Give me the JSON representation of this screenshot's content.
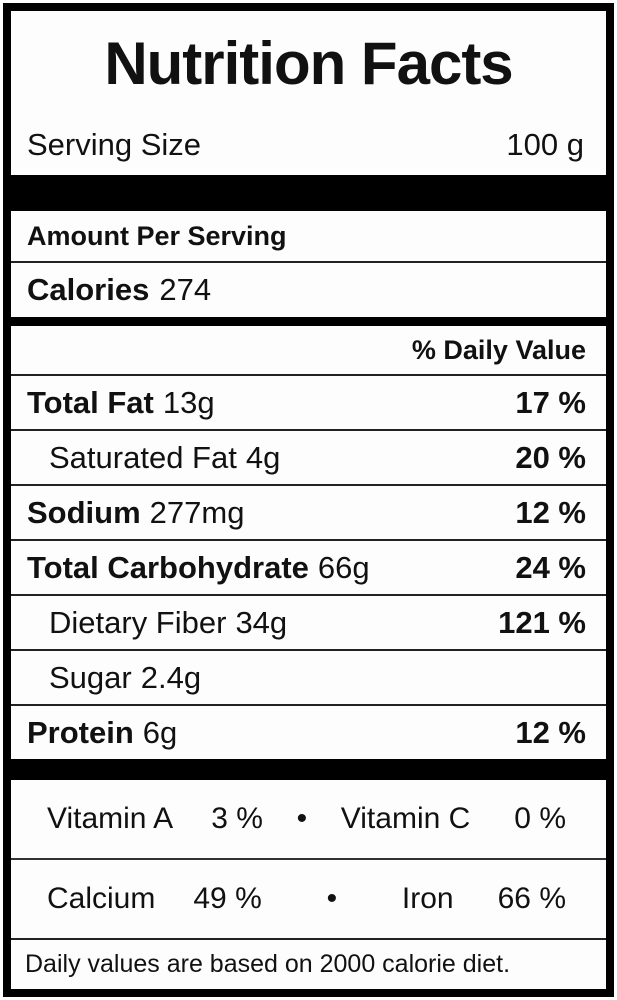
{
  "label": {
    "title": "Nutrition Facts",
    "serving_size": {
      "label": "Serving Size",
      "value": "100 g"
    },
    "amount_per_serving": "Amount Per Serving",
    "calories": {
      "label": "Calories",
      "value": "274"
    },
    "daily_value_header": "% Daily Value",
    "nutrients": [
      {
        "name": "Total Fat",
        "amount": "13g",
        "daily_value": "17 %",
        "bold": true,
        "indent": false
      },
      {
        "name": "Saturated Fat",
        "amount": "4g",
        "daily_value": "20 %",
        "bold": false,
        "indent": true
      },
      {
        "name": "Sodium",
        "amount": "277mg",
        "daily_value": "12 %",
        "bold": true,
        "indent": false
      },
      {
        "name": "Total Carbohydrate",
        "amount": "66g",
        "daily_value": "24 %",
        "bold": true,
        "indent": false
      },
      {
        "name": "Dietary Fiber",
        "amount": "34g",
        "daily_value": "121 %",
        "bold": false,
        "indent": true
      },
      {
        "name": "Sugar",
        "amount": "2.4g",
        "daily_value": "",
        "bold": false,
        "indent": true
      },
      {
        "name": "Protein",
        "amount": "6g",
        "daily_value": "12 %",
        "bold": true,
        "indent": false
      }
    ],
    "micronutrients": [
      {
        "left_name": "Vitamin A",
        "left_value": "3 %",
        "separator": "•",
        "right_name": "Vitamin C",
        "right_value": "0 %"
      },
      {
        "left_name": "Calcium",
        "left_value": "49 %",
        "separator": "•",
        "right_name": "Iron",
        "right_value": "66 %"
      }
    ],
    "footnote": "Daily values are based on 2000 calorie diet."
  },
  "colors": {
    "text": "#111111",
    "border": "#000000",
    "background": "#fdfdfd",
    "divider": "#222222"
  }
}
